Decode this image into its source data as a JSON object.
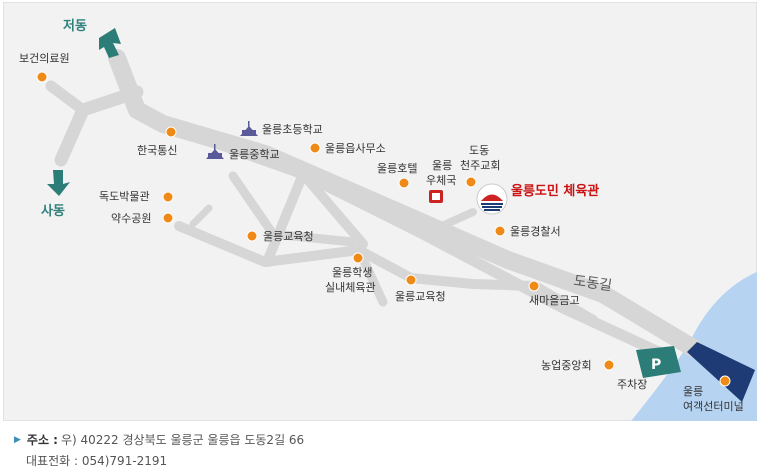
{
  "map": {
    "directions": {
      "north": "저동",
      "south": "사동"
    },
    "road_name": "도동길",
    "venue_name": "울릉도민 체육관",
    "parking_letter": "P",
    "places": {
      "health_clinic": "보건의료원",
      "school_elementary": "울릉초등학교",
      "school_middle": "울릉중학교",
      "kt": "한국통신",
      "town_office": "울릉읍사무소",
      "hotel": "울릉호텔",
      "post_office": [
        "울릉",
        "우체국"
      ],
      "church": [
        "도동",
        "천주교회"
      ],
      "museum": "독도박물관",
      "park": "약수공원",
      "education_office_1": "울릉교육청",
      "student_gym": [
        "울릉학생",
        "실내체육관"
      ],
      "education_office_2": "울릉교육청",
      "police": "울릉경찰서",
      "saemaeul": "새마을금고",
      "nonghyup": "농업중앙회",
      "parking": "주차장",
      "terminal": [
        "울릉",
        "여객선터미널"
      ]
    }
  },
  "info": {
    "address_label": "주소 :",
    "address": "우) 40222 경상북도 울릉군 울릉읍 도동2길 66",
    "phone": "대표전화 : 054)791-2191"
  },
  "colors": {
    "map_bg": "#f2f2f2",
    "road": "#d6d6d6",
    "sea": "#b6d3f2",
    "marker": "#f08a16",
    "teal": "#2c7d78",
    "navy": "#1f3b75"
  }
}
